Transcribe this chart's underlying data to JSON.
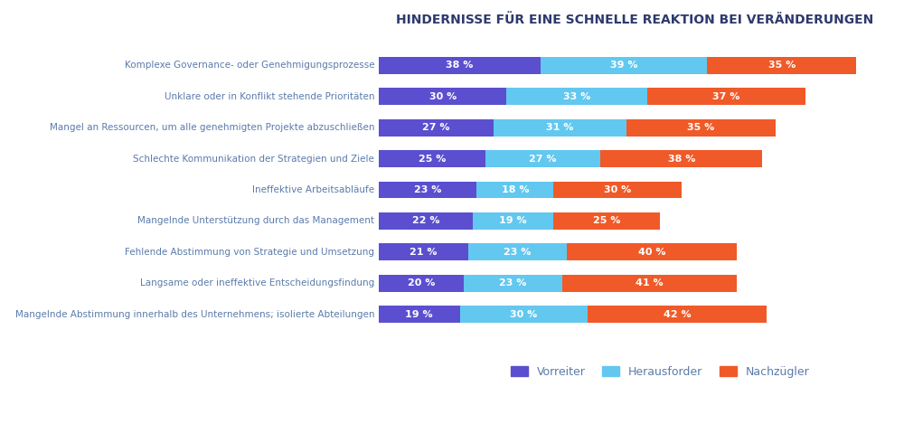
{
  "title": "HINDERNISSE FÜR EINE SCHNELLE REAKTION BEI VERÄNDERUNGEN",
  "categories": [
    "Komplexe Governance- oder Genehmigungsprozesse",
    "Unklare oder in Konflikt stehende Prioritäten",
    "Mangel an Ressourcen, um alle genehmigten Projekte abzuschließen",
    "Schlechte Kommunikation der Strategien und Ziele",
    "Ineffektive Arbeitsabläufe",
    "Mangelnde Unterstützung durch das Management",
    "Fehlende Abstimmung von Strategie und Umsetzung",
    "Langsame oder ineffektive Entscheidungsfindung",
    "Mangelnde Abstimmung innerhalb des Unternehmens; isolierte Abteilungen"
  ],
  "vorreiter": [
    38,
    30,
    27,
    25,
    23,
    22,
    21,
    20,
    19
  ],
  "herausforder": [
    39,
    33,
    31,
    27,
    18,
    19,
    23,
    23,
    30
  ],
  "nachzugler": [
    35,
    37,
    35,
    38,
    30,
    25,
    40,
    41,
    42
  ],
  "color_vorreiter": "#5B4FCF",
  "color_herausforder": "#62C8F0",
  "color_nachzugler": "#F05A28",
  "legend_labels": [
    "Vorreiter",
    "Herausforder",
    "Nachzügler"
  ],
  "background_color": "#FFFFFF",
  "title_color": "#2E3A6E",
  "label_color": "#5B7BAA",
  "bar_text_color": "#FFFFFF",
  "bar_height": 0.55
}
